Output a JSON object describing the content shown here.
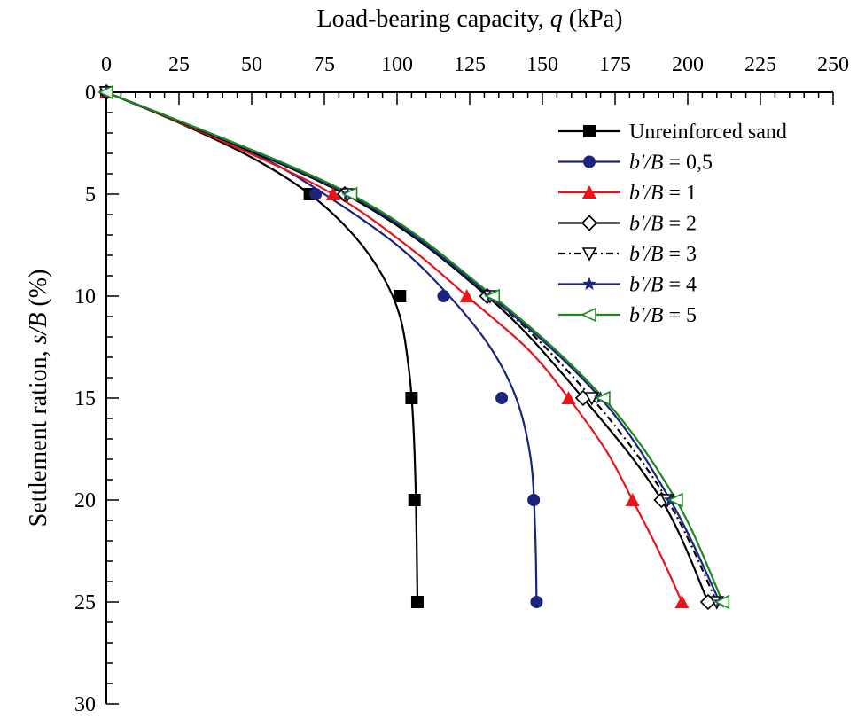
{
  "chart_data": {
    "type": "line",
    "title": "",
    "xlabel_parts": [
      {
        "text": "Load-bearing capacity, ",
        "italic": false
      },
      {
        "text": "q",
        "italic": true
      },
      {
        "text": " (kPa)",
        "italic": false
      }
    ],
    "ylabel_parts": [
      {
        "text": "Settlement ration, ",
        "italic": false
      },
      {
        "text": "s/B",
        "italic": true
      },
      {
        "text": " (%)",
        "italic": false
      }
    ],
    "xlim": [
      0,
      250
    ],
    "ylim": [
      0,
      30
    ],
    "x_axis_position": "top",
    "y_inverted": true,
    "grid": false,
    "x_ticks": [
      0,
      25,
      50,
      75,
      100,
      125,
      150,
      175,
      200,
      225,
      250
    ],
    "y_ticks": [
      0,
      5,
      10,
      15,
      20,
      25,
      30
    ],
    "legend_position": "top-right",
    "series": [
      {
        "name_parts": [
          {
            "text": "Unreinforced sand",
            "italic": false
          }
        ],
        "color": "#000000",
        "marker": "square",
        "dash": "solid",
        "x": [
          0,
          70,
          101,
          105,
          106,
          107
        ],
        "y": [
          0,
          5,
          10,
          15,
          20,
          25
        ],
        "curve_x": [
          0,
          25,
          50,
          70,
          85,
          95,
          101,
          104,
          105.5,
          106.5,
          107
        ],
        "curve_y": [
          0,
          1.5,
          3.2,
          5,
          7,
          9,
          11,
          13.5,
          16,
          20,
          25
        ]
      },
      {
        "name_parts": [
          {
            "text": "b'/B",
            "italic": true
          },
          {
            "text": " = 0,5",
            "italic": false
          }
        ],
        "color": "#1a237e",
        "marker": "circle",
        "dash": "solid",
        "x": [
          0,
          72,
          116,
          136,
          147,
          148
        ],
        "y": [
          0,
          5,
          10,
          15,
          20,
          25
        ],
        "curve_x": [
          0,
          30,
          55,
          75,
          100,
          118,
          132,
          141,
          146,
          147.5,
          148
        ],
        "curve_y": [
          0,
          1.7,
          3.3,
          5,
          7.5,
          10,
          12.5,
          15,
          18,
          21.5,
          25
        ]
      },
      {
        "name_parts": [
          {
            "text": "b'/B",
            "italic": true
          },
          {
            "text": " = 1",
            "italic": false
          }
        ],
        "color": "#e8141a",
        "marker": "triangle-up",
        "dash": "solid",
        "x": [
          0,
          78,
          124,
          159,
          181,
          198
        ],
        "y": [
          0,
          5,
          10,
          15,
          20,
          25
        ],
        "curve_x": [
          0,
          40,
          78,
          105,
          124,
          145,
          159,
          172,
          181,
          190,
          198
        ],
        "curve_y": [
          0,
          2.4,
          5,
          7.7,
          10,
          12.6,
          15,
          17.6,
          20,
          22.5,
          25
        ]
      },
      {
        "name_parts": [
          {
            "text": "b'/B",
            "italic": true
          },
          {
            "text": " = 2",
            "italic": false
          }
        ],
        "color": "#000000",
        "marker": "diamond-open",
        "dash": "solid",
        "x": [
          0,
          82,
          131,
          164,
          191,
          207
        ],
        "y": [
          0,
          5,
          10,
          15,
          20,
          25
        ],
        "curve_x": [
          0,
          82,
          131,
          164,
          191,
          207
        ],
        "curve_y": [
          0,
          5,
          10,
          15,
          20,
          25
        ]
      },
      {
        "name_parts": [
          {
            "text": "b'/B",
            "italic": true
          },
          {
            "text": " = 3",
            "italic": false
          }
        ],
        "color": "#000000",
        "marker": "triangle-down-open",
        "dash": "dashdot",
        "x": [
          0,
          83,
          132,
          167,
          193,
          210
        ],
        "y": [
          0,
          5,
          10,
          15,
          20,
          25
        ],
        "curve_x": [
          0,
          83,
          132,
          167,
          193,
          210
        ],
        "curve_y": [
          0,
          5,
          10,
          15,
          20,
          25
        ]
      },
      {
        "name_parts": [
          {
            "text": "b'/B",
            "italic": true
          },
          {
            "text": " = 4",
            "italic": false
          }
        ],
        "color": "#1a237e",
        "marker": "star",
        "dash": "solid",
        "x": [
          0,
          83,
          132,
          170,
          194,
          211
        ],
        "y": [
          0,
          5,
          10,
          15,
          20,
          25
        ],
        "curve_x": [
          0,
          83,
          132,
          170,
          194,
          211
        ],
        "curve_y": [
          0,
          5,
          10,
          15,
          20,
          25
        ]
      },
      {
        "name_parts": [
          {
            "text": "b'/B",
            "italic": true
          },
          {
            "text": " = 5",
            "italic": false
          }
        ],
        "color": "#1a8a1a",
        "marker": "triangle-left-open",
        "dash": "solid",
        "x": [
          0,
          84,
          133,
          171,
          196,
          212
        ],
        "y": [
          0,
          5,
          10,
          15,
          20,
          25
        ],
        "curve_x": [
          0,
          84,
          133,
          171,
          196,
          212
        ],
        "curve_y": [
          0,
          5,
          10,
          15,
          20,
          25
        ]
      }
    ]
  }
}
